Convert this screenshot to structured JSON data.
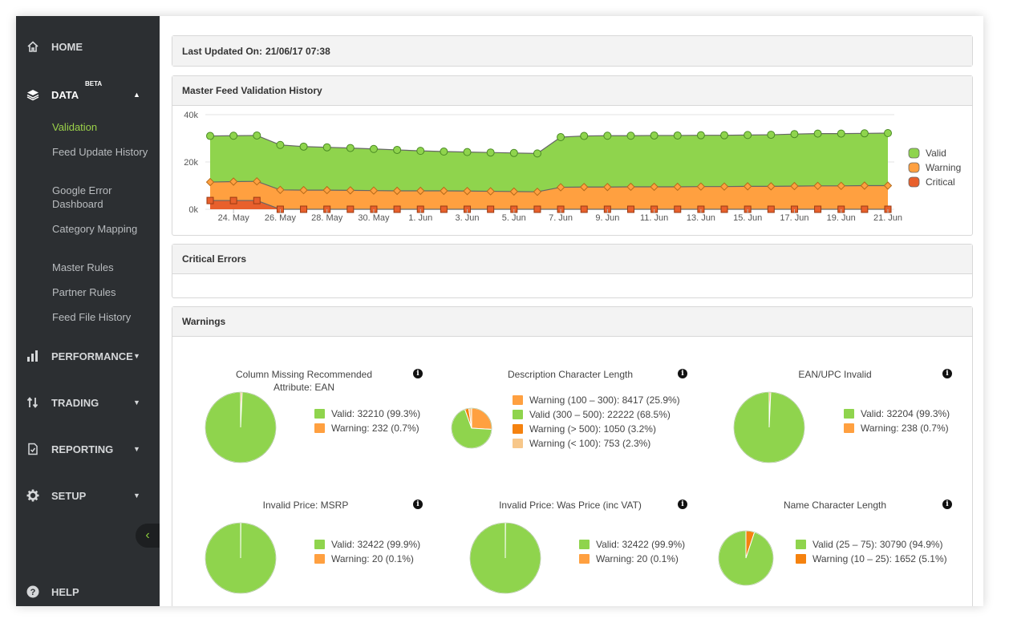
{
  "sidebar": {
    "home": "HOME",
    "data": "DATA",
    "beta": "BETA",
    "data_sub": [
      "Validation",
      "Feed Update History",
      "Google Error Dashboard",
      "Category Mapping",
      "Master Rules",
      "Partner Rules",
      "Feed File History"
    ],
    "performance": "PERFORMANCE",
    "trading": "TRADING",
    "reporting": "REPORTING",
    "setup": "SETUP",
    "help": "HELP",
    "collapse_icon": "chevron-left-icon"
  },
  "last_updated": {
    "label": "Last Updated On:",
    "value": "21/06/17 07:38"
  },
  "history_panel": {
    "title": "Master Feed Validation History"
  },
  "critical_panel": {
    "title": "Critical Errors"
  },
  "warnings_panel": {
    "title": "Warnings"
  },
  "colors": {
    "valid": "#8fd44d",
    "warning": "#ffa040",
    "critical": "#e8602c",
    "accent": "#9bd14a",
    "sidebar": "#2c2f32"
  },
  "chart_data": [
    {
      "type": "area",
      "title": "Master Feed Validation History",
      "y_ticks": [
        "0k",
        "20k",
        "40k"
      ],
      "ylim": [
        0,
        40000
      ],
      "x_tick_labels": [
        "24. May",
        "26. May",
        "28. May",
        "30. May",
        "1. Jun",
        "3. Jun",
        "5. Jun",
        "7. Jun",
        "9. Jun",
        "11. Jun",
        "13. Jun",
        "15. Jun",
        "17. Jun",
        "19. Jun",
        "21. Jun"
      ],
      "x": [
        "23 May",
        "24 May",
        "25 May",
        "26 May",
        "27 May",
        "28 May",
        "29 May",
        "30 May",
        "31 May",
        "1 Jun",
        "2 Jun",
        "3 Jun",
        "4 Jun",
        "5 Jun",
        "6 Jun",
        "7 Jun",
        "8 Jun",
        "9 Jun",
        "10 Jun",
        "11 Jun",
        "12 Jun",
        "13 Jun",
        "14 Jun",
        "15 Jun",
        "16 Jun",
        "17 Jun",
        "18 Jun",
        "19 Jun",
        "20 Jun",
        "21 Jun"
      ],
      "legend_position": "right",
      "series": [
        {
          "name": "Valid",
          "color": "#8fd44d",
          "values": [
            31000,
            31100,
            31200,
            27200,
            26500,
            26200,
            25900,
            25500,
            25100,
            24700,
            24400,
            24200,
            24000,
            23800,
            23600,
            30500,
            31000,
            31100,
            31100,
            31200,
            31200,
            31300,
            31300,
            31400,
            31500,
            31800,
            32000,
            32000,
            32100,
            32200
          ]
        },
        {
          "name": "Warning",
          "color": "#ffa040",
          "values": [
            11500,
            11700,
            11800,
            8200,
            8100,
            8100,
            8000,
            7900,
            7800,
            7800,
            7800,
            7700,
            7600,
            7500,
            7400,
            9300,
            9400,
            9400,
            9500,
            9500,
            9500,
            9600,
            9600,
            9700,
            9700,
            9800,
            9900,
            9900,
            10000,
            10000
          ]
        },
        {
          "name": "Critical",
          "color": "#e8602c",
          "values": [
            3700,
            3700,
            3700,
            0,
            0,
            0,
            0,
            0,
            0,
            0,
            0,
            0,
            0,
            0,
            0,
            0,
            0,
            0,
            0,
            0,
            0,
            0,
            0,
            0,
            0,
            0,
            0,
            0,
            0,
            0
          ]
        }
      ]
    },
    {
      "type": "pie",
      "title": "Column Missing Recommended Attribute: EAN",
      "slices": [
        {
          "label": "Valid: 32210 (99.3%)",
          "value": 99.3,
          "color": "#8fd44d"
        },
        {
          "label": "Warning: 232 (0.7%)",
          "value": 0.7,
          "color": "#ffa040"
        }
      ]
    },
    {
      "type": "pie",
      "title": "Description Character Length",
      "slices": [
        {
          "label": "Warning (100 – 300): 8417 (25.9%)",
          "value": 25.9,
          "color": "#ffa040"
        },
        {
          "label": "Valid (300 – 500): 22222 (68.5%)",
          "value": 68.5,
          "color": "#8fd44d"
        },
        {
          "label": "Warning (> 500): 1050 (3.2%)",
          "value": 3.2,
          "color": "#f5820f"
        },
        {
          "label": "Warning (< 100): 753 (2.3%)",
          "value": 2.3,
          "color": "#f7c78a"
        }
      ]
    },
    {
      "type": "pie",
      "title": "EAN/UPC Invalid",
      "slices": [
        {
          "label": "Valid: 32204 (99.3%)",
          "value": 99.3,
          "color": "#8fd44d"
        },
        {
          "label": "Warning: 238 (0.7%)",
          "value": 0.7,
          "color": "#ffa040"
        }
      ]
    },
    {
      "type": "pie",
      "title": "Invalid Price: MSRP",
      "slices": [
        {
          "label": "Valid: 32422 (99.9%)",
          "value": 99.9,
          "color": "#8fd44d"
        },
        {
          "label": "Warning: 20 (0.1%)",
          "value": 0.1,
          "color": "#ffa040"
        }
      ]
    },
    {
      "type": "pie",
      "title": "Invalid Price: Was Price (inc VAT)",
      "slices": [
        {
          "label": "Valid: 32422 (99.9%)",
          "value": 99.9,
          "color": "#8fd44d"
        },
        {
          "label": "Warning: 20 (0.1%)",
          "value": 0.1,
          "color": "#ffa040"
        }
      ]
    },
    {
      "type": "pie",
      "title": "Name Character Length",
      "slices": [
        {
          "label": "Valid (25 – 75): 30790 (94.9%)",
          "value": 94.9,
          "color": "#8fd44d"
        },
        {
          "label": "Warning (10 – 25): 1652 (5.1%)",
          "value": 5.1,
          "color": "#f5820f"
        }
      ]
    }
  ]
}
